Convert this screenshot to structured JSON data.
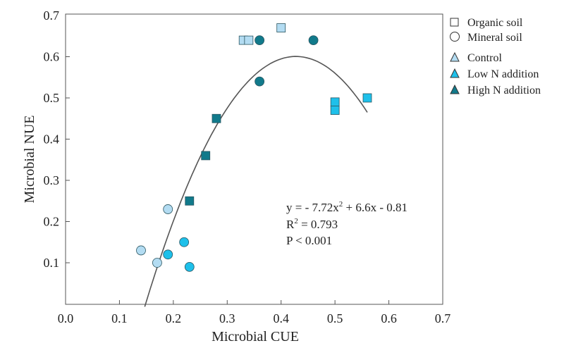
{
  "chart_data": {
    "type": "scatter",
    "xlabel": "Microbial CUE",
    "ylabel": "Microbial NUE",
    "xlim": [
      0,
      0.7
    ],
    "ylim": [
      0,
      0.7
    ],
    "xticks": [
      "0.0",
      "0.1",
      "0.2",
      "0.3",
      "0.4",
      "0.5",
      "0.6",
      "0.7"
    ],
    "yticks": [
      "0.1",
      "0.2",
      "0.3",
      "0.4",
      "0.5",
      "0.6",
      "0.7"
    ],
    "grid": false,
    "legend_position": "right",
    "legend": {
      "shapes": [
        {
          "label": "Organic soil",
          "shape": "square"
        },
        {
          "label": "Mineral soil",
          "shape": "circle"
        }
      ],
      "treatments": [
        {
          "label": "Control",
          "color": "#b3dcf2"
        },
        {
          "label": "Low N addition",
          "color": "#1ec0ea"
        },
        {
          "label": "High N addition",
          "color": "#117a8b"
        }
      ]
    },
    "series": [
      {
        "name": "Organic soil - Control",
        "shape": "square",
        "color": "#b3dcf2",
        "x": [
          0.33,
          0.34,
          0.4
        ],
        "y": [
          0.64,
          0.64,
          0.67
        ]
      },
      {
        "name": "Organic soil - Low N addition",
        "shape": "square",
        "color": "#1ec0ea",
        "x": [
          0.5,
          0.5,
          0.56
        ],
        "y": [
          0.49,
          0.47,
          0.5
        ]
      },
      {
        "name": "Organic soil - High N addition",
        "shape": "square",
        "color": "#117a8b",
        "x": [
          0.28,
          0.26,
          0.23
        ],
        "y": [
          0.45,
          0.36,
          0.25
        ]
      },
      {
        "name": "Mineral soil - Control",
        "shape": "circle",
        "color": "#b3dcf2",
        "x": [
          0.19,
          0.14,
          0.17
        ],
        "y": [
          0.23,
          0.13,
          0.1
        ]
      },
      {
        "name": "Mineral soil - Low N addition",
        "shape": "circle",
        "color": "#1ec0ea",
        "x": [
          0.22,
          0.19,
          0.23
        ],
        "y": [
          0.15,
          0.12,
          0.09
        ]
      },
      {
        "name": "Mineral soil - High N addition",
        "shape": "circle",
        "color": "#117a8b",
        "x": [
          0.36,
          0.46,
          0.36
        ],
        "y": [
          0.64,
          0.64,
          0.54
        ]
      }
    ],
    "fit": {
      "a": -7.72,
      "b": 6.6,
      "c": -0.81,
      "x_range": [
        0.147,
        0.56
      ]
    },
    "annotations": {
      "equation_prefix": "y = - 7.72x",
      "equation_sup": "2",
      "equation_suffix": " + 6.6x - 0.81",
      "r2_prefix": "R",
      "r2_sup": "2",
      "r2_suffix": " = 0.793",
      "p": "P < 0.001"
    }
  }
}
